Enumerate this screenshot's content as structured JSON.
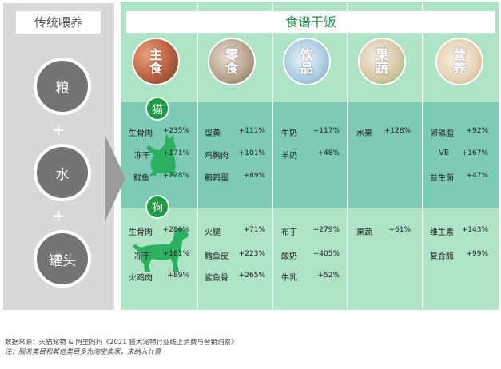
{
  "colors": {
    "dark_green": "#1f9a46",
    "gray_circle": "#747474",
    "mint": "#aee3c6",
    "teal": "#7dcbb6"
  },
  "traditional": {
    "title": "传统喂养",
    "items": [
      "粮",
      "水",
      "罐头"
    ],
    "plus": "+"
  },
  "recipe": {
    "title": "食谱干饭",
    "categories": [
      {
        "label": "主食",
        "color": "#c46a4a"
      },
      {
        "label": "零食",
        "color": "#b9a58f"
      },
      {
        "label": "饮品",
        "color": "#a9cbe0"
      },
      {
        "label": "果蔬",
        "color": "#d8c9a8"
      },
      {
        "label": "营养",
        "color": "#e8d5b8"
      }
    ],
    "cat": {
      "badge": "猫",
      "icon": "cat-silhouette-icon",
      "columns": [
        [
          {
            "name": "生骨肉",
            "value": "+235%"
          },
          {
            "name": "冻干",
            "value": "+171%"
          },
          {
            "name": "鲜鱼",
            "value": "+228%"
          }
        ],
        [
          {
            "name": "蛋黄",
            "value": "+111%"
          },
          {
            "name": "鸡胸肉",
            "value": "+101%"
          },
          {
            "name": "鹌鹑蛋",
            "value": "+89%"
          }
        ],
        [
          {
            "name": "牛奶",
            "value": "+117%"
          },
          {
            "name": "羊奶",
            "value": "+48%"
          }
        ],
        [
          {
            "name": "水果",
            "value": "+128%"
          }
        ],
        [
          {
            "name": "卵磷脂",
            "value": "+92%"
          },
          {
            "name": "VE",
            "value": "+167%"
          },
          {
            "name": "益生菌",
            "value": "+47%"
          }
        ]
      ]
    },
    "dog": {
      "badge": "狗",
      "icon": "dog-silhouette-icon",
      "columns": [
        [
          {
            "name": "生骨肉",
            "value": "+286%"
          },
          {
            "name": "冻干",
            "value": "+181%"
          },
          {
            "name": "火鸡肉",
            "value": "+89%"
          }
        ],
        [
          {
            "name": "火腿",
            "value": "+71%"
          },
          {
            "name": "鳕鱼皮",
            "value": "+223%"
          },
          {
            "name": "鲨鱼骨",
            "value": "+265%"
          }
        ],
        [
          {
            "name": "布丁",
            "value": "+279%"
          },
          {
            "name": "酸奶",
            "value": "+405%"
          },
          {
            "name": "牛乳",
            "value": "+52%"
          }
        ],
        [
          {
            "name": "果蔬",
            "value": "+61%"
          }
        ],
        [
          {
            "name": "维生素",
            "value": "+143%"
          },
          {
            "name": "复合酶",
            "value": "+99%"
          }
        ]
      ]
    }
  },
  "footnotes": {
    "source": "数据来源：天猫宠物 & 阿里妈妈《2021 猫犬宠物行业线上消费与营销洞察》",
    "note": "注：服务类目和其他类目多为淘宝卖家，未纳入计算"
  }
}
